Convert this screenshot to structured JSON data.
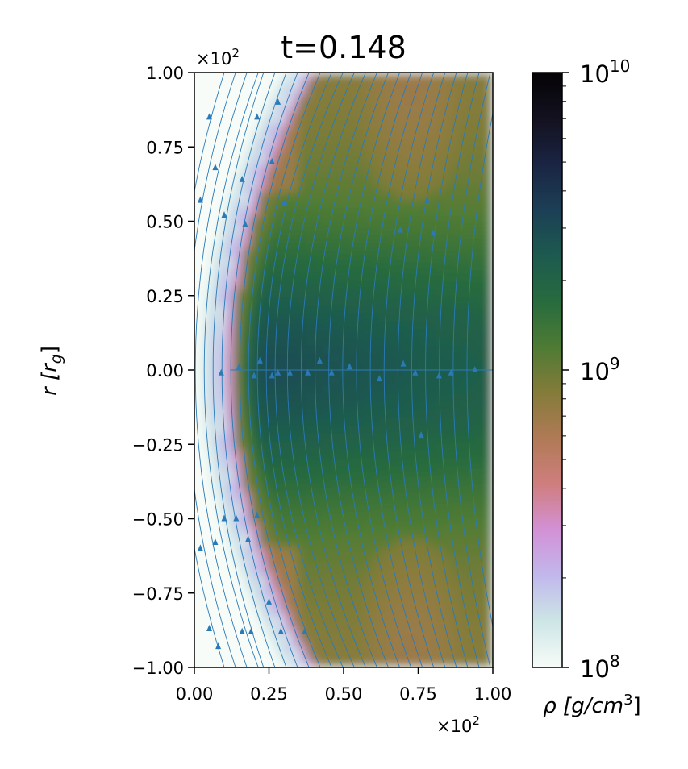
{
  "chart_data": {
    "type": "heatmap",
    "title": "t=0.148",
    "xlabel": "",
    "ylabel": "r [r_g]",
    "ylabel_parts": {
      "main": "r [r",
      "sub": "g",
      "end": "]"
    },
    "xlim": [
      0.0,
      1.0
    ],
    "ylim": [
      -1.0,
      1.0
    ],
    "x_multiplier": {
      "base": "×10",
      "exp": "2"
    },
    "y_multiplier": {
      "base": "×10",
      "exp": "2"
    },
    "x_ticks": [
      0.0,
      0.25,
      0.5,
      0.75,
      1.0
    ],
    "x_tick_labels": [
      "0.00",
      "0.25",
      "0.50",
      "0.75",
      "1.00"
    ],
    "y_ticks": [
      1.0,
      0.75,
      0.5,
      0.25,
      0.0,
      -0.25,
      -0.5,
      -0.75,
      -1.0
    ],
    "y_tick_labels": [
      "1.00",
      "0.75",
      "0.50",
      "0.25",
      "0.00",
      "−0.25",
      "−0.50",
      "−0.75",
      "−1.00"
    ],
    "colorbar": {
      "label": "ρ [g/cm³]",
      "label_parts": {
        "rho": "ρ",
        "open": " [g/cm",
        "exp": "3",
        "close": "]"
      },
      "scale": "log",
      "vmin": 100000000,
      "vmax": 10000000000,
      "ticks": [
        {
          "value": 10000000000,
          "base": "10",
          "exp": "10"
        },
        {
          "value": 1000000000,
          "base": "10",
          "exp": "9"
        },
        {
          "value": 100000000,
          "base": "10",
          "exp": "8"
        }
      ],
      "colormap": "cubehelix_r",
      "colormap_stops": [
        "#f7fcf8",
        "#cde6e6",
        "#c1b8ec",
        "#d391d6",
        "#cf7e7e",
        "#b07a56",
        "#857b3a",
        "#4e7b34",
        "#276b3e",
        "#1d5a4f",
        "#1c3f56",
        "#1a2443",
        "#13111f",
        "#050306"
      ]
    },
    "field_description": "log density field with overlaid streamlines",
    "streamlines": {
      "color": "#2a7ab8",
      "arrow_count": 40
    }
  }
}
